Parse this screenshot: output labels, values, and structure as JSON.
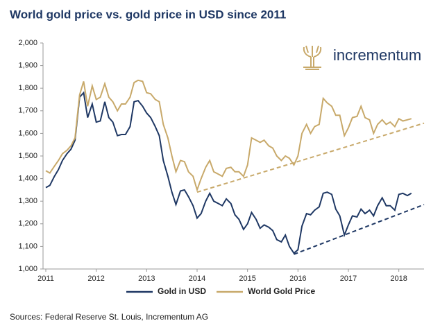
{
  "chart_data": {
    "type": "line",
    "title": "World gold price vs. gold price in USD since 2011",
    "logo": "incrementum",
    "source": "Sources: Federal Reserve St. Louis, Incrementum AG",
    "x": [
      2011,
      2011.08,
      2011.17,
      2011.25,
      2011.33,
      2011.42,
      2011.5,
      2011.58,
      2011.67,
      2011.75,
      2011.83,
      2011.92,
      2012,
      2012.08,
      2012.17,
      2012.25,
      2012.33,
      2012.42,
      2012.5,
      2012.58,
      2012.67,
      2012.75,
      2012.83,
      2012.92,
      2013,
      2013.08,
      2013.17,
      2013.25,
      2013.33,
      2013.42,
      2013.5,
      2013.58,
      2013.67,
      2013.75,
      2013.83,
      2013.92,
      2014,
      2014.08,
      2014.17,
      2014.25,
      2014.33,
      2014.42,
      2014.5,
      2014.58,
      2014.67,
      2014.75,
      2014.83,
      2014.92,
      2015,
      2015.08,
      2015.17,
      2015.25,
      2015.33,
      2015.42,
      2015.5,
      2015.58,
      2015.67,
      2015.75,
      2015.83,
      2015.92,
      2016,
      2016.08,
      2016.17,
      2016.25,
      2016.33,
      2016.42,
      2016.5,
      2016.58,
      2016.67,
      2016.75,
      2016.83,
      2016.92,
      2017,
      2017.08,
      2017.17,
      2017.25,
      2017.33,
      2017.42,
      2017.5,
      2017.58,
      2017.67,
      2017.75,
      2017.83,
      2017.92,
      2018,
      2018.08,
      2018.17,
      2018.25
    ],
    "series": [
      {
        "name": "Gold in USD",
        "color": "#1f3864",
        "values": [
          1360,
          1370,
          1410,
          1440,
          1480,
          1510,
          1530,
          1570,
          1760,
          1780,
          1670,
          1730,
          1650,
          1655,
          1740,
          1670,
          1650,
          1590,
          1595,
          1595,
          1630,
          1740,
          1745,
          1720,
          1690,
          1670,
          1630,
          1590,
          1480,
          1410,
          1340,
          1285,
          1345,
          1350,
          1320,
          1280,
          1225,
          1245,
          1300,
          1335,
          1300,
          1290,
          1280,
          1310,
          1290,
          1240,
          1220,
          1175,
          1200,
          1250,
          1220,
          1180,
          1195,
          1185,
          1170,
          1130,
          1120,
          1150,
          1100,
          1070,
          1085,
          1190,
          1245,
          1240,
          1260,
          1275,
          1335,
          1340,
          1330,
          1265,
          1235,
          1150,
          1195,
          1235,
          1230,
          1265,
          1245,
          1260,
          1235,
          1280,
          1315,
          1280,
          1280,
          1260,
          1330,
          1335,
          1325,
          1335
        ]
      },
      {
        "name": "World Gold Price",
        "color": "#c8a96a",
        "values": [
          1435,
          1425,
          1455,
          1480,
          1510,
          1525,
          1545,
          1580,
          1770,
          1830,
          1720,
          1810,
          1750,
          1760,
          1820,
          1760,
          1740,
          1700,
          1730,
          1730,
          1760,
          1825,
          1835,
          1830,
          1780,
          1775,
          1750,
          1740,
          1640,
          1580,
          1500,
          1430,
          1480,
          1475,
          1430,
          1410,
          1350,
          1400,
          1450,
          1480,
          1430,
          1420,
          1410,
          1445,
          1450,
          1430,
          1430,
          1410,
          1460,
          1580,
          1570,
          1560,
          1570,
          1545,
          1535,
          1500,
          1480,
          1500,
          1490,
          1460,
          1500,
          1600,
          1640,
          1600,
          1630,
          1640,
          1755,
          1735,
          1720,
          1680,
          1680,
          1590,
          1625,
          1670,
          1675,
          1720,
          1670,
          1660,
          1600,
          1640,
          1660,
          1640,
          1650,
          1630,
          1665,
          1655,
          1660,
          1665
        ]
      }
    ],
    "trendlines": [
      {
        "color": "#c8a96a",
        "x": [
          2014,
          2018.5
        ],
        "values": [
          1340,
          1645
        ]
      },
      {
        "color": "#1f3864",
        "x": [
          2015.92,
          2018.5
        ],
        "values": [
          1065,
          1285
        ]
      }
    ],
    "xlim": [
      2011,
      2018.5
    ],
    "xticks": [
      2011,
      2012,
      2013,
      2014,
      2015,
      2016,
      2017,
      2018
    ],
    "ylim": [
      1000,
      2000
    ],
    "yticks": [
      {
        "value": 1000,
        "label": "1,000"
      },
      {
        "value": 1100,
        "label": "1,100"
      },
      {
        "value": 1200,
        "label": "1,200"
      },
      {
        "value": 1300,
        "label": "1,300"
      },
      {
        "value": 1400,
        "label": "1,400"
      },
      {
        "value": 1500,
        "label": "1,500"
      },
      {
        "value": 1600,
        "label": "1,600"
      },
      {
        "value": 1700,
        "label": "1,700"
      },
      {
        "value": 1800,
        "label": "1,800"
      },
      {
        "value": 1900,
        "label": "1,900"
      },
      {
        "value": 2000,
        "label": "2,000"
      }
    ],
    "grid": false,
    "legend": "bottom"
  }
}
